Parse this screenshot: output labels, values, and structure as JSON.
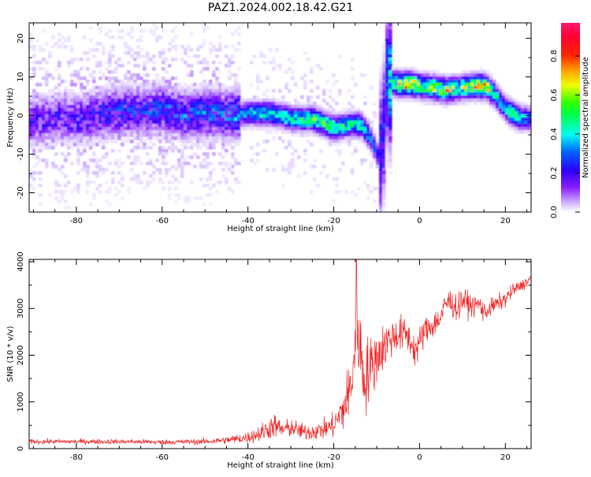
{
  "title": "PAZ1.2024.002.18.42.G21",
  "chart_data": [
    {
      "type": "heatmap",
      "xlabel": "Height of straight line (km)",
      "ylabel": "Frequency (Hz)",
      "xlim": [
        -91,
        26
      ],
      "ylim": [
        -25,
        24
      ],
      "xticks": [
        -80,
        -60,
        -40,
        -20,
        0,
        20
      ],
      "yticks": [
        -20,
        -10,
        0,
        10,
        20
      ],
      "grid": false,
      "colorbar": {
        "label": "Normalized spectral amplitude",
        "range": [
          0,
          0.97
        ],
        "ticks": [
          0.0,
          0.2,
          0.4,
          0.6,
          0.8
        ],
        "colormap": "hsv-rainbow"
      },
      "ridge": {
        "x": [
          -91,
          -85,
          -80,
          -75,
          -70,
          -65,
          -60,
          -55,
          -50,
          -45,
          -40,
          -35,
          -30,
          -25,
          -20,
          -17,
          -14,
          -12,
          -10,
          -9,
          -8,
          -7,
          -5,
          -2,
          0,
          3,
          6,
          9,
          12,
          15,
          17,
          19,
          21,
          23,
          25,
          26
        ],
        "y": [
          -1,
          0,
          -0.5,
          0.5,
          1.5,
          1.5,
          2,
          0.5,
          1,
          0.5,
          1,
          1,
          -0.5,
          -0.5,
          -3,
          -2,
          -2,
          -5,
          -10,
          -8,
          10,
          9,
          8.5,
          8.5,
          8,
          7.5,
          7,
          7.5,
          8,
          8,
          6,
          3,
          1,
          0,
          -0.5,
          0
        ],
        "amplitude": [
          0.2,
          0.2,
          0.22,
          0.25,
          0.28,
          0.25,
          0.3,
          0.3,
          0.3,
          0.3,
          0.42,
          0.48,
          0.5,
          0.6,
          0.58,
          0.48,
          0.5,
          0.35,
          0.3,
          0.25,
          0.35,
          0.5,
          0.75,
          0.85,
          0.6,
          0.7,
          0.72,
          0.6,
          0.72,
          0.88,
          0.5,
          0.4,
          0.6,
          0.45,
          0.35,
          0.3
        ]
      }
    },
    {
      "type": "line",
      "xlabel": "Height of straight line (km)",
      "ylabel": "SNR (10 * v/v)",
      "xlim": [
        -91,
        26
      ],
      "ylim": [
        0,
        4050
      ],
      "xticks": [
        -80,
        -60,
        -40,
        -20,
        0,
        20
      ],
      "yticks": [
        0,
        1000,
        2000,
        3000,
        4000
      ],
      "grid": false,
      "series": [
        {
          "color": "#ee2222",
          "envelope": {
            "x": [
              -91,
              -80,
              -70,
              -60,
              -50,
              -45,
              -40,
              -37,
              -34,
              -32,
              -30,
              -27,
              -24,
              -22,
              -20,
              -18,
              -16,
              -14.5,
              -13,
              -11,
              -9,
              -7,
              -5,
              -3,
              -1,
              0,
              1,
              3,
              5,
              6,
              7,
              9,
              10,
              12,
              14,
              15,
              17,
              20,
              22,
              24,
              26
            ],
            "mean": [
              150,
              150,
              150,
              140,
              150,
              180,
              240,
              330,
              500,
              400,
              450,
              350,
              380,
              420,
              500,
              800,
              1300,
              2700,
              1500,
              1800,
              2100,
              2350,
              2450,
              2450,
              2100,
              2250,
              2500,
              2650,
              2800,
              3100,
              3150,
              3000,
              3200,
              3050,
              3100,
              2900,
              3050,
              3200,
              3400,
              3500,
              3650
            ],
            "amp": [
              60,
              60,
              60,
              60,
              70,
              90,
              140,
              220,
              300,
              220,
              220,
              200,
              220,
              240,
              300,
              520,
              800,
              1100,
              1000,
              700,
              600,
              500,
              450,
              400,
              400,
              400,
              350,
              350,
              300,
              350,
              350,
              300,
              350,
              250,
              250,
              250,
              200,
              200,
              160,
              140,
              120
            ],
            "peak": {
              "x": -14.7,
              "y": 4050
            }
          }
        }
      ]
    }
  ]
}
